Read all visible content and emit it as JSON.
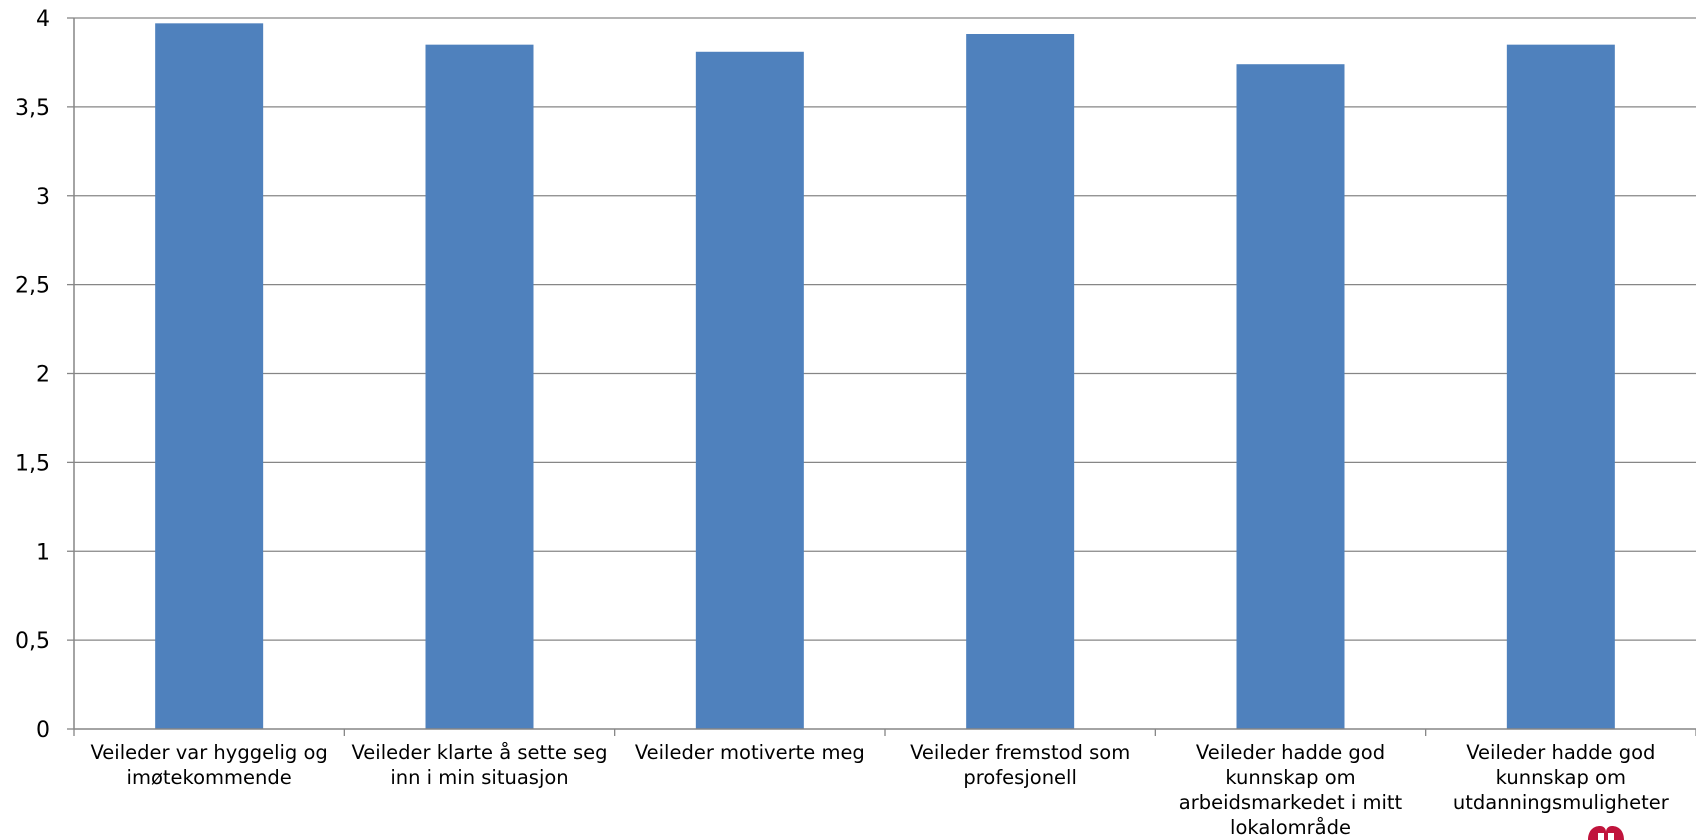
{
  "chart_data": {
    "type": "bar",
    "categories": [
      "Veileder var hyggelig og imøtekommende",
      "Veileder klarte å sette seg inn i min situasjon",
      "Veileder motiverte meg",
      "Veileder fremstod som profesjonell",
      "Veileder hadde god kunnskap om arbeidsmarkedet i mitt lokalområde",
      "Veileder hadde god kunnskap om utdanningsmuligheter"
    ],
    "values": [
      3.97,
      3.85,
      3.81,
      3.91,
      3.74,
      3.85
    ],
    "ylim": [
      0,
      4
    ],
    "yticks": [
      "0",
      "0,5",
      "1",
      "1,5",
      "2",
      "2,5",
      "3",
      "3,5",
      "4"
    ],
    "title": "",
    "xlabel": "",
    "ylabel": "",
    "grid": true,
    "bar_color": "#4F81BD",
    "grid_color": "#868686"
  }
}
